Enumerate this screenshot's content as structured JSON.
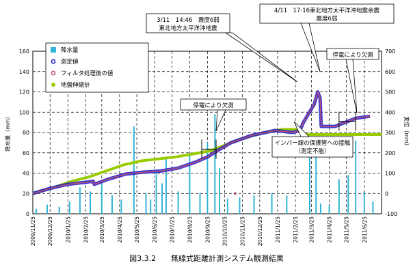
{
  "chart_data": {
    "type": "bar+line",
    "title": "",
    "caption": "図3.3.2　　無線式距離計測システム観測結果",
    "y_left": {
      "label": "降水量（mm）",
      "lim": [
        0,
        160
      ],
      "ticks": [
        "0",
        "20",
        "40",
        "60",
        "80",
        "100",
        "120",
        "140",
        "160"
      ]
    },
    "y_right": {
      "label": "変位（mm）",
      "lim": [
        -100,
        700
      ],
      "ticks": [
        "-100",
        "0",
        "100",
        "200",
        "300",
        "400",
        "500",
        "600",
        "700"
      ]
    },
    "x": {
      "start": "2009-11-25",
      "end": "2011-07-25",
      "tick_labels": [
        "2009/11/25",
        "2009/12/25",
        "2010/1/25",
        "2010/2/25",
        "2010/3/25",
        "2010/4/25",
        "2010/5/25",
        "2010/6/25",
        "2010/7/25",
        "2010/8/25",
        "2010/9/25",
        "2010/10/25",
        "2010/11/25",
        "2010/12/25",
        "2011/1/25",
        "2011/2/25",
        "2011/3/25",
        "2011/4/25",
        "2011/5/25",
        "2011/6/25"
      ]
    },
    "legend": {
      "placement": "top-left",
      "entries": [
        {
          "key": "rain",
          "label": "降水量",
          "color": "#33b5d6"
        },
        {
          "key": "measured",
          "label": "測定値",
          "color": "#1a1acc"
        },
        {
          "key": "filtered",
          "label": "フィルタ処理後の値",
          "color": "#c0506a"
        },
        {
          "key": "ground",
          "label": "地盤伸縮計",
          "color": "#99cc00"
        }
      ]
    },
    "series": [
      {
        "name": "測定値",
        "axis": "right",
        "color": "#1a1acc",
        "points": [
          [
            "2009-11-25",
            0
          ],
          [
            "2009-12-25",
            25
          ],
          [
            "2010-1-25",
            45
          ],
          [
            "2010-2-25",
            55
          ],
          [
            "2010-3-10",
            60
          ],
          [
            "2010-3-12",
            45
          ],
          [
            "2010-4-5",
            70
          ],
          [
            "2010-5-5",
            95
          ],
          [
            "2010-6-5",
            105
          ],
          [
            "2010-7-5",
            110
          ],
          [
            "2010-8-5",
            125
          ],
          [
            "2010-9-5",
            155
          ],
          [
            "2010-9-25",
            180
          ],
          [
            "2010-10-12",
            210
          ],
          [
            "2010-11-5",
            250
          ],
          [
            "2010-12-10",
            285
          ],
          [
            "2011-1-20",
            310
          ],
          [
            "2011-2-20",
            300
          ],
          [
            "2011-3-5",
            310
          ],
          [
            "2011-3-11",
            350
          ],
          [
            "2011-3-30",
            440
          ],
          [
            "2011-4-5",
            500
          ],
          [
            "2011-4-9",
            470
          ],
          [
            "2011-4-11",
            330
          ],
          [
            "2011-5-5",
            330
          ],
          [
            "2011-6-10",
            370
          ],
          [
            "2011-7-5",
            380
          ]
        ]
      },
      {
        "name": "フィルタ処理後の値",
        "axis": "right",
        "color": "#c0506a",
        "points": [
          [
            "2009-11-25",
            0
          ],
          [
            "2009-12-25",
            25
          ],
          [
            "2010-1-25",
            45
          ],
          [
            "2010-2-25",
            55
          ],
          [
            "2010-3-10",
            60
          ],
          [
            "2010-3-12",
            45
          ],
          [
            "2010-4-5",
            70
          ],
          [
            "2010-5-5",
            95
          ],
          [
            "2010-6-5",
            105
          ],
          [
            "2010-7-5",
            110
          ],
          [
            "2010-8-5",
            125
          ],
          [
            "2010-9-5",
            155
          ],
          [
            "2010-9-25",
            180
          ],
          [
            "2010-10-12",
            210
          ],
          [
            "2010-11-5",
            250
          ],
          [
            "2010-12-10",
            285
          ],
          [
            "2011-1-20",
            310
          ],
          [
            "2011-2-20",
            300
          ],
          [
            "2011-3-5",
            310
          ],
          [
            "2011-3-11",
            350
          ],
          [
            "2011-3-30",
            440
          ],
          [
            "2011-4-5",
            500
          ],
          [
            "2011-4-9",
            470
          ],
          [
            "2011-4-11",
            330
          ],
          [
            "2011-5-5",
            330
          ],
          [
            "2011-6-10",
            370
          ],
          [
            "2011-7-5",
            380
          ]
        ]
      },
      {
        "name": "地盤伸縮計",
        "axis": "right",
        "color": "#99cc00",
        "points": [
          [
            "2009-11-25",
            0
          ],
          [
            "2010-1-1",
            30
          ],
          [
            "2010-2-1",
            60
          ],
          [
            "2010-3-1",
            80
          ],
          [
            "2010-4-1",
            110
          ],
          [
            "2010-5-1",
            140
          ],
          [
            "2010-6-1",
            160
          ],
          [
            "2010-7-1",
            170
          ],
          [
            "2010-8-1",
            180
          ],
          [
            "2010-9-1",
            195
          ],
          [
            "2010-10-1",
            210
          ],
          [
            "2010-11-1",
            245
          ],
          [
            "2010-12-1",
            275
          ],
          [
            "2011-1-1",
            300
          ],
          [
            "2011-2-1",
            315
          ],
          [
            "2011-3-1",
            315
          ],
          [
            "2011-3-15",
            290
          ],
          [
            "2011-4-15",
            290
          ],
          [
            "2011-7-25",
            290
          ]
        ]
      },
      {
        "name": "降水量",
        "axis": "left",
        "color": "#33b5d6",
        "bars": [
          [
            "2009-12-1",
            5
          ],
          [
            "2009-12-20",
            9
          ],
          [
            "2010-1-10",
            7
          ],
          [
            "2010-1-28",
            12
          ],
          [
            "2010-2-15",
            26
          ],
          [
            "2010-3-5",
            22
          ],
          [
            "2010-3-25",
            30
          ],
          [
            "2010-4-12",
            18
          ],
          [
            "2010-4-28",
            14
          ],
          [
            "2010-5-20",
            86
          ],
          [
            "2010-6-10",
            20
          ],
          [
            "2010-6-18",
            14
          ],
          [
            "2010-6-28",
            40
          ],
          [
            "2010-7-8",
            30
          ],
          [
            "2010-7-15",
            55
          ],
          [
            "2010-8-5",
            22
          ],
          [
            "2010-8-25",
            60
          ],
          [
            "2010-9-12",
            20
          ],
          [
            "2010-9-25",
            70
          ],
          [
            "2010-10-8",
            98
          ],
          [
            "2010-10-16",
            45
          ],
          [
            "2010-10-30",
            15
          ],
          [
            "2010-11-20",
            16
          ],
          [
            "2010-12-15",
            18
          ],
          [
            "2011-1-15",
            20
          ],
          [
            "2011-2-10",
            18
          ],
          [
            "2011-3-22",
            72
          ],
          [
            "2011-4-2",
            58
          ],
          [
            "2011-4-10",
            10
          ],
          [
            "2011-4-25",
            8
          ],
          [
            "2011-5-12",
            34
          ],
          [
            "2011-5-28",
            38
          ],
          [
            "2011-6-10",
            72
          ],
          [
            "2011-6-25",
            22
          ],
          [
            "2011-7-10",
            12
          ]
        ]
      }
    ],
    "annotations": [
      {
        "key": "quake311",
        "lines": [
          "3/11　14:46　震度6弱",
          "東北地方太平洋沖地震"
        ]
      },
      {
        "key": "quake411",
        "lines": [
          "4/11　17:16東北地方太平洋沖地震余震",
          "震度6弱"
        ]
      },
      {
        "key": "outage1",
        "lines": [
          "停電により欠測"
        ]
      },
      {
        "key": "outage2",
        "lines": [
          "停電により欠測"
        ]
      },
      {
        "key": "invar",
        "lines": [
          "インバー線の保護管への接触",
          "（測定不能）"
        ]
      }
    ]
  }
}
